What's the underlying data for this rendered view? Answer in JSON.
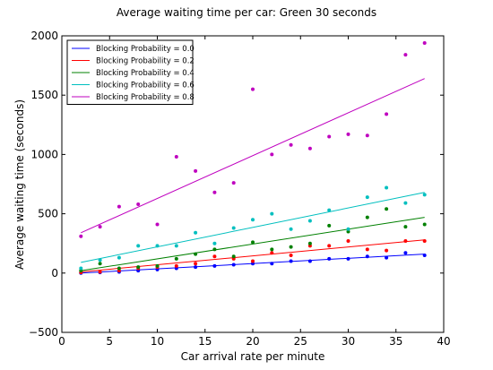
{
  "chart_data": {
    "type": "scatter",
    "title": "Average waiting time per car: Green 30 seconds",
    "xlabel": "Car arrival rate per minute",
    "ylabel": "Average waiting time (seconds)",
    "xlim": [
      0,
      40
    ],
    "ylim": [
      -500,
      2000
    ],
    "xticks": [
      0,
      5,
      10,
      15,
      20,
      25,
      30,
      35,
      40
    ],
    "yticks": [
      -500,
      0,
      500,
      1000,
      1500,
      2000
    ],
    "grid": false,
    "legend_position": "top-left",
    "x": [
      2,
      4,
      6,
      8,
      10,
      12,
      14,
      16,
      18,
      20,
      22,
      24,
      26,
      28,
      30,
      32,
      34,
      36,
      38
    ],
    "series": [
      {
        "name": "Blocking Probability = 0.0",
        "color": "#0000ff",
        "values": [
          0,
          5,
          10,
          20,
          30,
          40,
          50,
          60,
          70,
          80,
          80,
          100,
          100,
          120,
          120,
          140,
          130,
          170,
          150
        ],
        "trend": [
          0,
          160
        ]
      },
      {
        "name": "Blocking Probability = 0.2",
        "color": "#ff0000",
        "values": [
          5,
          10,
          20,
          40,
          50,
          60,
          80,
          140,
          120,
          100,
          170,
          150,
          230,
          230,
          270,
          200,
          190,
          270,
          270
        ],
        "trend": [
          10,
          280
        ]
      },
      {
        "name": "Blocking Probability = 0.4",
        "color": "#008000",
        "values": [
          20,
          80,
          40,
          50,
          60,
          120,
          160,
          200,
          140,
          260,
          200,
          220,
          250,
          400,
          350,
          470,
          540,
          390,
          410
        ],
        "trend": [
          20,
          470
        ]
      },
      {
        "name": "Blocking Probability = 0.6",
        "color": "#00bfbf",
        "values": [
          40,
          110,
          130,
          230,
          230,
          230,
          340,
          250,
          380,
          450,
          500,
          370,
          440,
          530,
          370,
          640,
          720,
          590,
          660
        ],
        "trend": [
          90,
          680
        ]
      },
      {
        "name": "Blocking Probability = 0.8",
        "color": "#bf00bf",
        "values": [
          310,
          390,
          560,
          580,
          410,
          980,
          860,
          680,
          760,
          1550,
          1000,
          1080,
          1050,
          1150,
          1170,
          1160,
          1340,
          1840,
          1940
        ],
        "trend": [
          340,
          1640
        ]
      }
    ]
  }
}
